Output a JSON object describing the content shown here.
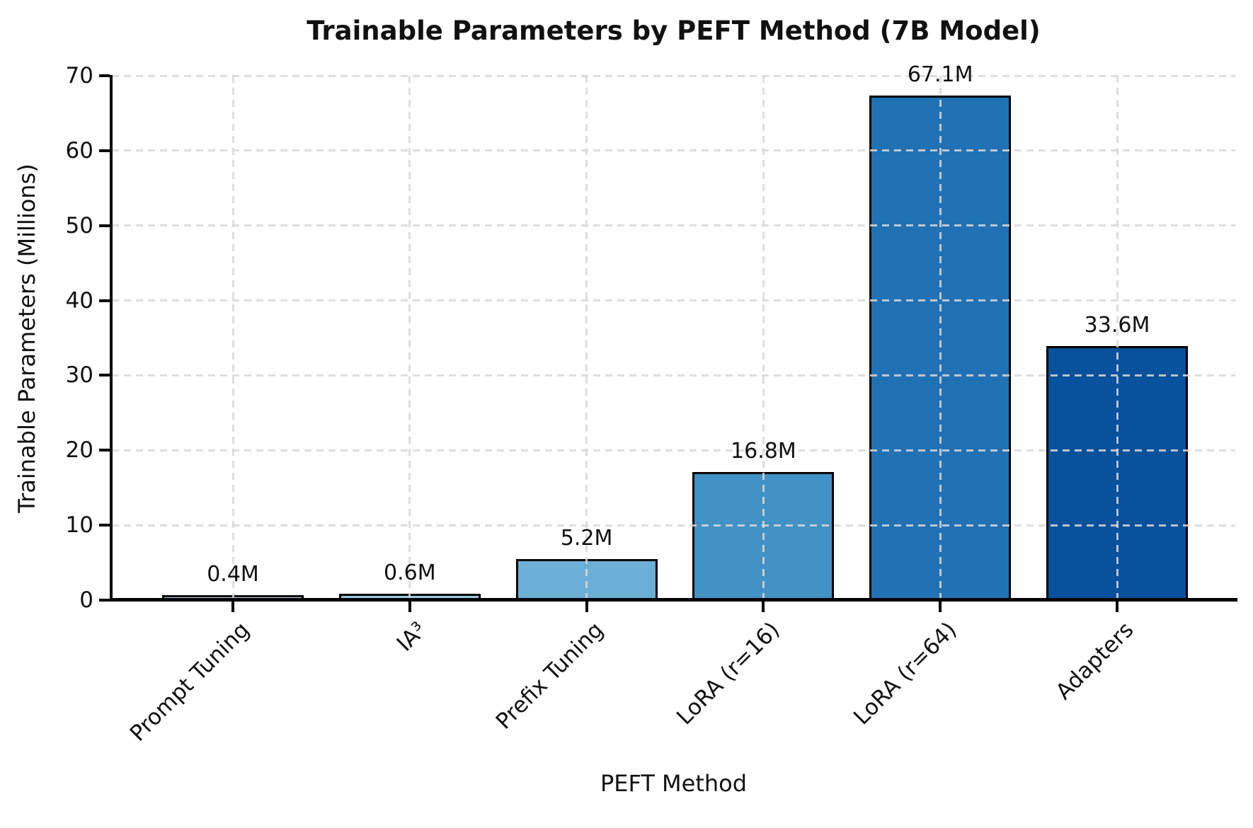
{
  "chart_data": {
    "type": "bar",
    "title": "Trainable Parameters by PEFT Method (7B Model)",
    "xlabel": "PEFT Method",
    "ylabel": "Trainable Parameters (Millions)",
    "categories": [
      "Prompt Tuning",
      "IA³",
      "Prefix Tuning",
      "LoRA (r=16)",
      "LoRA (r=64)",
      "Adapters"
    ],
    "values": [
      0.4,
      0.6,
      5.2,
      16.8,
      67.1,
      33.6
    ],
    "value_labels": [
      "0.4M",
      "0.6M",
      "5.2M",
      "16.8M",
      "67.1M",
      "33.6M"
    ],
    "bar_colors": [
      "#c6dbef",
      "#9ecae1",
      "#6baed6",
      "#4292c6",
      "#2171b5",
      "#08519c"
    ],
    "bar_edge_color": "#000000",
    "ylim": [
      0,
      70
    ],
    "yticks": [
      0,
      10,
      20,
      30,
      40,
      50,
      60,
      70
    ],
    "grid": "dashed",
    "grid_color": "#d8d8d8",
    "legend": "none",
    "background_color": "#ffffff"
  }
}
